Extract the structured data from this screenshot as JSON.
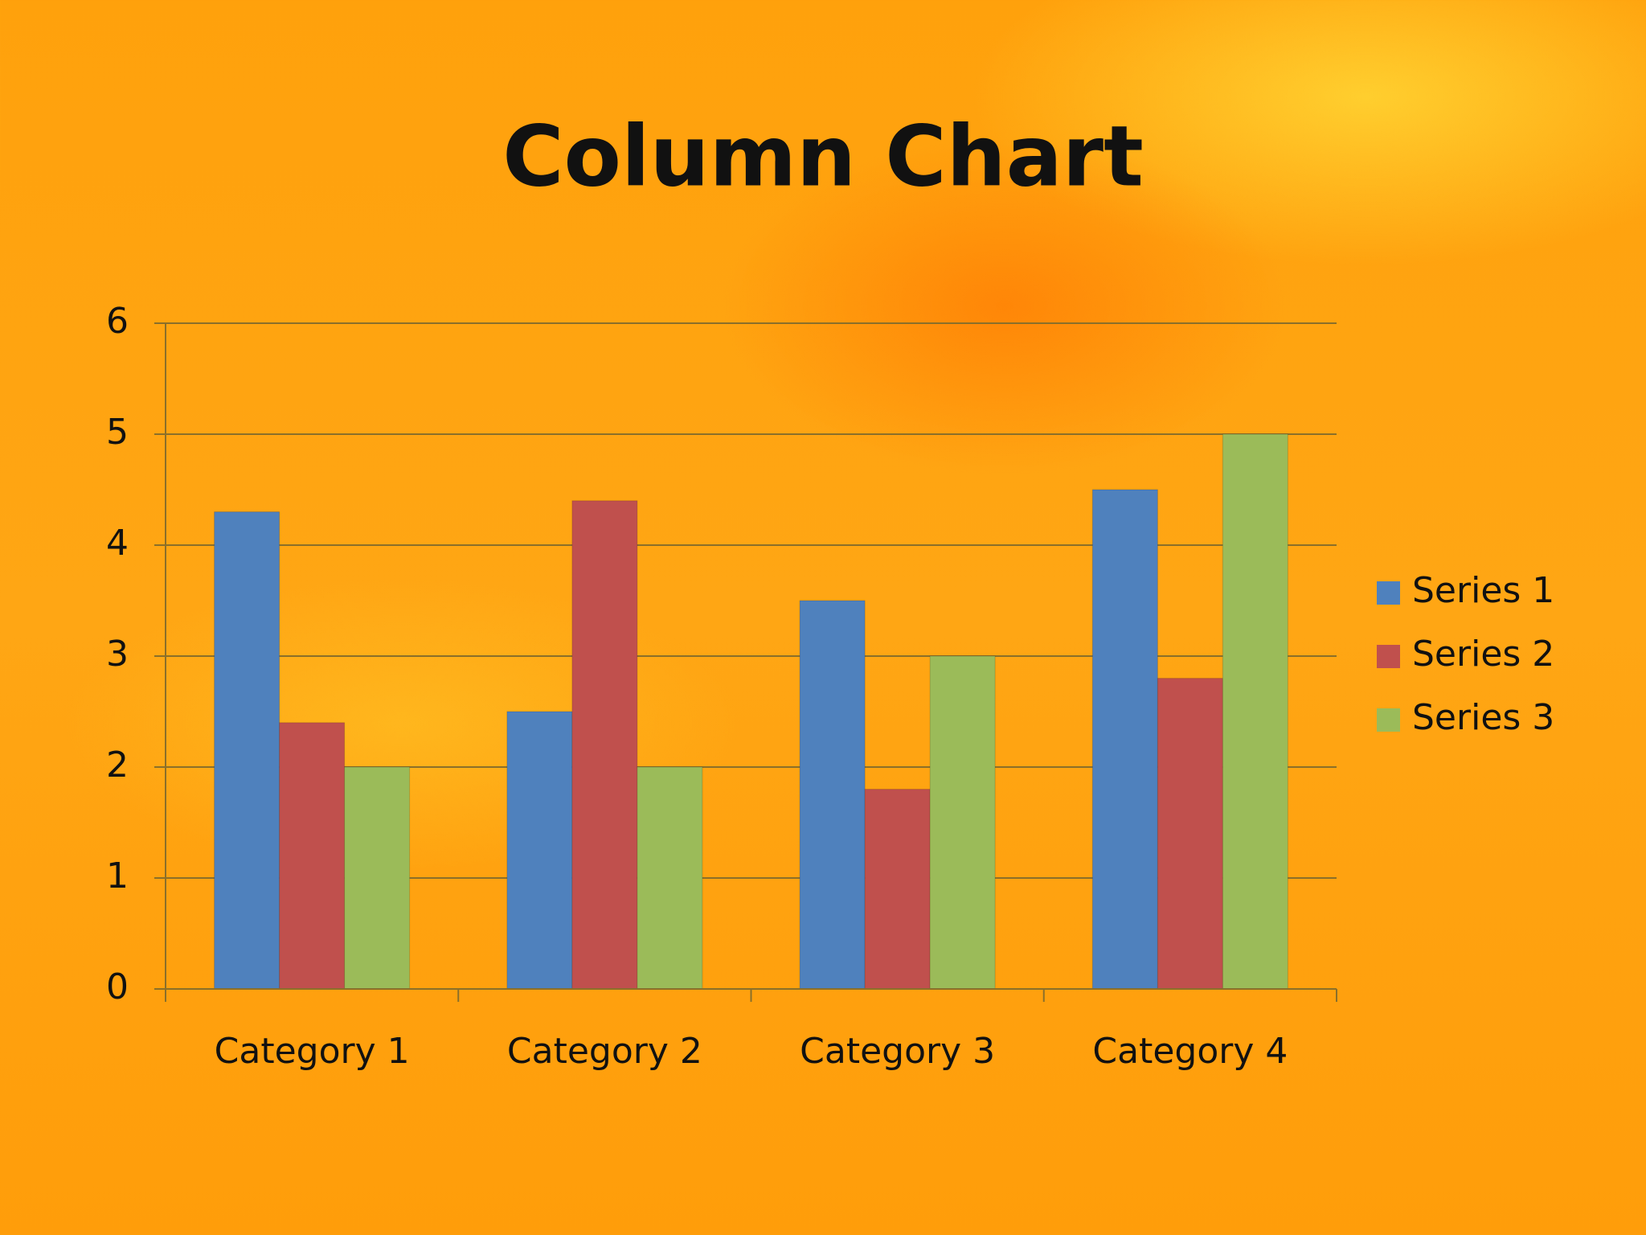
{
  "chart_data": {
    "type": "bar",
    "title": "Column Chart",
    "categories": [
      "Category 1",
      "Category 2",
      "Category 3",
      "Category 4"
    ],
    "series": [
      {
        "name": "Series 1",
        "color": "#4f81bd",
        "values": [
          4.3,
          2.5,
          3.5,
          4.5
        ]
      },
      {
        "name": "Series 2",
        "color": "#c0504d",
        "values": [
          2.4,
          4.4,
          1.8,
          2.8
        ]
      },
      {
        "name": "Series 3",
        "color": "#9bbb59",
        "values": [
          2,
          2,
          3,
          5
        ]
      }
    ],
    "ylim": [
      0,
      6
    ],
    "yticks": [
      0,
      1,
      2,
      3,
      4,
      5,
      6
    ],
    "grid": true,
    "legend": "right"
  }
}
